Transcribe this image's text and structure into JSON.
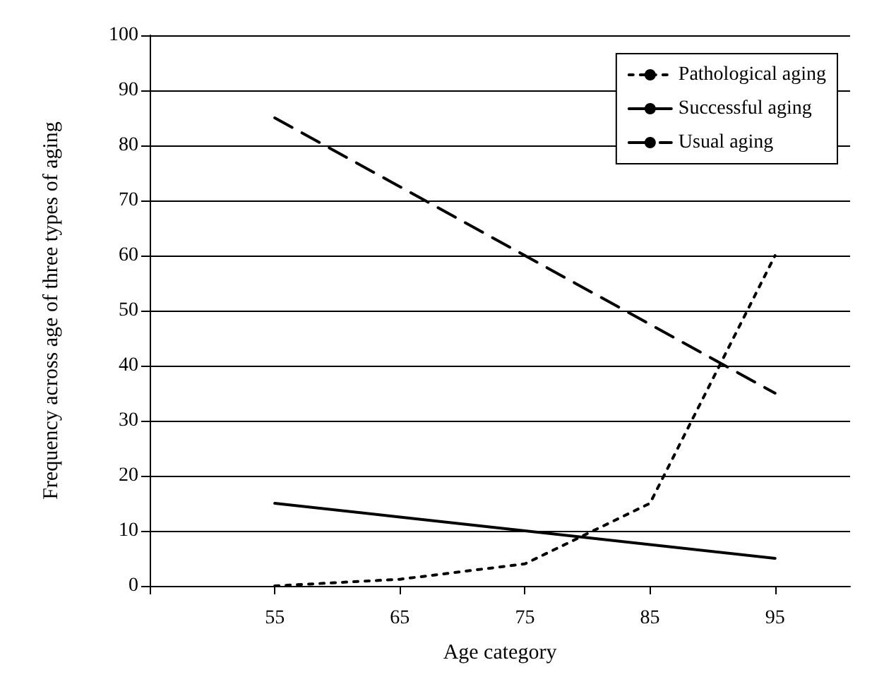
{
  "chart_data": {
    "type": "line",
    "xlabel": "Age category",
    "ylabel": "Frequency across age of three types of aging",
    "x": [
      55,
      65,
      75,
      85,
      95
    ],
    "xlim": [
      45,
      101
    ],
    "xticks": [
      {
        "value": 45,
        "label": null
      },
      55,
      65,
      75,
      85,
      95
    ],
    "ylim": [
      0,
      100
    ],
    "yticks": [
      0,
      10,
      20,
      30,
      40,
      50,
      60,
      70,
      80,
      90,
      100
    ],
    "grid": "y",
    "legend": "top right",
    "marker": "none",
    "series": [
      {
        "name": "Pathological aging",
        "color": "#000000",
        "line_style": "dotted",
        "values": [
          0,
          1.2,
          4,
          15,
          60
        ]
      },
      {
        "name": "Successful aging",
        "color": "#000000",
        "line_style": "solid",
        "values": [
          15,
          12.5,
          10,
          7.5,
          5
        ]
      },
      {
        "name": "Usual aging",
        "color": "#000000",
        "line_style": "dashed",
        "values": [
          85,
          72.5,
          60,
          47.5,
          35
        ]
      }
    ]
  }
}
